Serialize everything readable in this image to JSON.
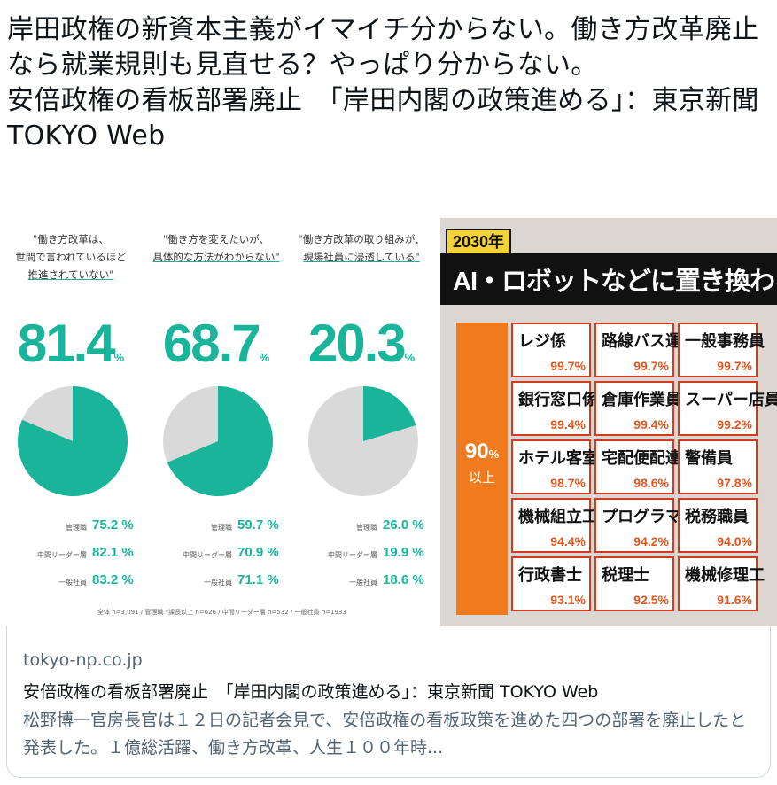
{
  "tweet": {
    "text": "岸田政権の新資本主義がイマイチ分からない。働き方改革廃止なら就業規則も見直せる？やっぱり分からない。\n安倍政権の看板部署廃止　「岸田内閣の政策進める」：東京新聞 TOKYO Web"
  },
  "left_image": {
    "columns": [
      {
        "quote_lines": [
          "\"働き方改革は、",
          "世間で言われているほど",
          "推進されていない\""
        ],
        "value": "81.4",
        "unit": "%",
        "pie_fraction": 0.814,
        "rows": [
          {
            "label": "管理職",
            "value": "75.2 %"
          },
          {
            "label": "中間リーダー層",
            "value": "82.1 %"
          },
          {
            "label": "一般社員",
            "value": "83.2 %"
          }
        ]
      },
      {
        "quote_lines": [
          "\"働き方を変えたいが、",
          "具体的な方法がわからない\""
        ],
        "value": "68.7",
        "unit": "%",
        "pie_fraction": 0.687,
        "rows": [
          {
            "label": "管理職",
            "value": "59.7 %"
          },
          {
            "label": "中間リーダー層",
            "value": "70.9 %"
          },
          {
            "label": "一般社員",
            "value": "71.1 %"
          }
        ]
      },
      {
        "quote_lines": [
          "\"働き方改革の取り組みが、",
          "現場社員に浸透している\""
        ],
        "value": "20.3",
        "unit": "%",
        "pie_fraction": 0.203,
        "rows": [
          {
            "label": "管理職",
            "value": "26.0 %"
          },
          {
            "label": "中間リーダー層",
            "value": "19.9 %"
          },
          {
            "label": "一般社員",
            "value": "18.6 %"
          }
        ]
      }
    ],
    "footnote": "全体 n=3,091 / 管理職 *課長以上 n=626 / 中間リーダー層 n=532 / 一般社員 n=1933",
    "colors": {
      "accent": "#19b49a",
      "pie_rest": "#d9d9d9"
    }
  },
  "right_image": {
    "year_tag": "2030年",
    "title": "AI・ロボットなどに置き換わる可能性",
    "side_label_value": "90",
    "side_label_unit": "%",
    "side_label_text": "以上",
    "jobs": [
      {
        "name": "レジ係",
        "pct": "99.7%"
      },
      {
        "name": "路線バス運転者",
        "pct": "99.7%"
      },
      {
        "name": "一般事務員",
        "pct": "99.7%"
      },
      {
        "name": "銀行窓口係",
        "pct": "99.4%"
      },
      {
        "name": "倉庫作業員",
        "pct": "99.4%"
      },
      {
        "name": "スーパー店員",
        "pct": "99.2%"
      },
      {
        "name": "ホテル客室係",
        "pct": "98.7%"
      },
      {
        "name": "宅配便配達員",
        "pct": "98.6%"
      },
      {
        "name": "警備員",
        "pct": "97.8%"
      },
      {
        "name": "機械組立工",
        "pct": "94.4%"
      },
      {
        "name": "プログラマー",
        "pct": "94.2%"
      },
      {
        "name": "税務職員",
        "pct": "94.0%"
      },
      {
        "name": "行政書士",
        "pct": "93.1%"
      },
      {
        "name": "税理士",
        "pct": "92.5%"
      },
      {
        "name": "機械修理工",
        "pct": "91.6%"
      }
    ]
  },
  "link_card": {
    "domain": "tokyo-np.co.jp",
    "title": "安倍政権の看板部署廃止　「岸田内閣の政策進める」：東京新聞 TOKYO Web",
    "description": "松野博一官房長官は１２日の記者会見で、安倍政権の看板政策を進めた四つの部署を廃止したと発表した。１億総活躍、働き方改革、人生１００年時..."
  }
}
